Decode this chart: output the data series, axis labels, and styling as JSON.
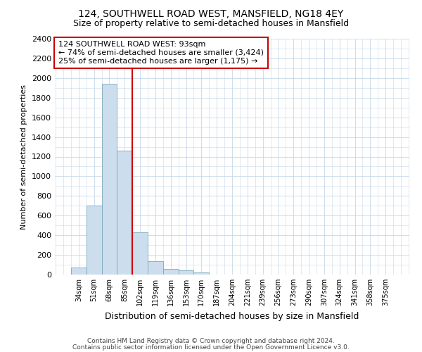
{
  "title1": "124, SOUTHWELL ROAD WEST, MANSFIELD, NG18 4EY",
  "title2": "Size of property relative to semi-detached houses in Mansfield",
  "xlabel": "Distribution of semi-detached houses by size in Mansfield",
  "ylabel": "Number of semi-detached properties",
  "categories": [
    "34sqm",
    "51sqm",
    "68sqm",
    "85sqm",
    "102sqm",
    "119sqm",
    "136sqm",
    "153sqm",
    "170sqm",
    "187sqm",
    "204sqm",
    "221sqm",
    "239sqm",
    "256sqm",
    "273sqm",
    "290sqm",
    "307sqm",
    "324sqm",
    "341sqm",
    "358sqm",
    "375sqm"
  ],
  "values": [
    70,
    700,
    1940,
    1260,
    430,
    135,
    60,
    40,
    25,
    0,
    0,
    0,
    0,
    0,
    0,
    0,
    0,
    0,
    0,
    0,
    0
  ],
  "bar_color": "#ccdded",
  "bar_edge_color": "#7aaabb",
  "vline_color": "#cc0000",
  "annotation_text": "124 SOUTHWELL ROAD WEST: 93sqm\n← 74% of semi-detached houses are smaller (3,424)\n25% of semi-detached houses are larger (1,175) →",
  "ylim": [
    0,
    2400
  ],
  "yticks": [
    0,
    200,
    400,
    600,
    800,
    1000,
    1200,
    1400,
    1600,
    1800,
    2000,
    2200,
    2400
  ],
  "footer1": "Contains HM Land Registry data © Crown copyright and database right 2024.",
  "footer2": "Contains public sector information licensed under the Open Government Licence v3.0.",
  "bg_color": "#ffffff",
  "grid_color": "#c8d8e8",
  "title1_fontsize": 10,
  "title2_fontsize": 9,
  "annotation_fontsize": 8,
  "annotation_box_color": "#ffffff",
  "annotation_box_edge": "#cc0000",
  "vline_pos": 3.5
}
